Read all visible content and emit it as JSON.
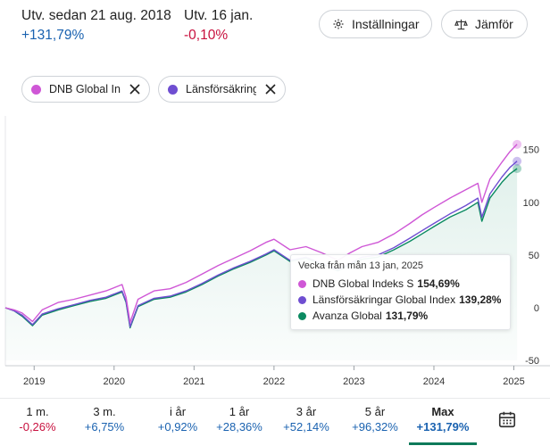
{
  "header": {
    "since_label": "Utv. sedan 21 aug. 2018",
    "since_value": "+131,79%",
    "day_label": "Utv. 16 jan.",
    "day_value": "-0,10%",
    "settings_label": "Inställningar",
    "compare_label": "Jämför"
  },
  "chips": [
    {
      "label": "DNB Global Indeks S",
      "color": "#cf57d6"
    },
    {
      "label": "Länsförsäkringar Global Index",
      "color": "#6f4ed1"
    }
  ],
  "chart_data": {
    "type": "line",
    "x_labels": [
      "2019",
      "2020",
      "2021",
      "2022",
      "2023",
      "2024",
      "2025"
    ],
    "y_ticks": [
      "150",
      "100",
      "50",
      "0",
      "-50"
    ],
    "y_tick_values": [
      150,
      100,
      50,
      0,
      -50
    ],
    "ylim": [
      -55,
      165
    ],
    "xlim": [
      2018.64,
      2025.05
    ],
    "series": [
      {
        "name": "DNB Global Indeks S",
        "color": "#cf57d6",
        "x": [
          2018.64,
          2018.75,
          2018.85,
          2018.98,
          2019.1,
          2019.3,
          2019.5,
          2019.7,
          2019.9,
          2020.1,
          2020.15,
          2020.2,
          2020.3,
          2020.5,
          2020.7,
          2020.9,
          2021.1,
          2021.3,
          2021.5,
          2021.7,
          2021.9,
          2022.0,
          2022.2,
          2022.4,
          2022.6,
          2022.8,
          2022.95,
          2023.1,
          2023.3,
          2023.5,
          2023.7,
          2023.85,
          2024.0,
          2024.2,
          2024.4,
          2024.55,
          2024.6,
          2024.7,
          2024.85,
          2024.95,
          2025.04
        ],
        "y": [
          0,
          -2,
          -5,
          -13,
          -2,
          5,
          8,
          12,
          16,
          22,
          10,
          -14,
          8,
          16,
          18,
          24,
          32,
          40,
          47,
          54,
          62,
          65,
          55,
          58,
          52,
          45,
          52,
          58,
          62,
          70,
          80,
          88,
          95,
          104,
          112,
          118,
          100,
          122,
          138,
          148,
          155
        ]
      },
      {
        "name": "Länsförsäkringar Global Index",
        "color": "#6f4ed1",
        "x": [
          2018.64,
          2018.75,
          2018.85,
          2018.98,
          2019.1,
          2019.3,
          2019.5,
          2019.7,
          2019.9,
          2020.1,
          2020.15,
          2020.2,
          2020.3,
          2020.5,
          2020.7,
          2020.9,
          2021.1,
          2021.3,
          2021.5,
          2021.7,
          2021.9,
          2022.0,
          2022.2,
          2022.4,
          2022.6,
          2022.8,
          2022.95,
          2023.1,
          2023.3,
          2023.5,
          2023.7,
          2023.85,
          2024.0,
          2024.2,
          2024.4,
          2024.55,
          2024.6,
          2024.7,
          2024.85,
          2024.95,
          2025.04
        ],
        "y": [
          0,
          -3,
          -7,
          -16,
          -6,
          -1,
          3,
          7,
          10,
          16,
          6,
          -18,
          2,
          9,
          11,
          16,
          23,
          31,
          38,
          44,
          51,
          55,
          45,
          48,
          42,
          36,
          42,
          48,
          50,
          57,
          66,
          73,
          80,
          89,
          97,
          104,
          86,
          108,
          124,
          133,
          139
        ]
      },
      {
        "name": "Avanza Global",
        "color": "#0b8a61",
        "x": [
          2018.64,
          2018.75,
          2018.85,
          2018.98,
          2019.1,
          2019.3,
          2019.5,
          2019.7,
          2019.9,
          2020.1,
          2020.15,
          2020.2,
          2020.3,
          2020.5,
          2020.7,
          2020.9,
          2021.1,
          2021.3,
          2021.5,
          2021.7,
          2021.9,
          2022.0,
          2022.2,
          2022.4,
          2022.6,
          2022.8,
          2022.95,
          2023.1,
          2023.3,
          2023.5,
          2023.7,
          2023.85,
          2024.0,
          2024.2,
          2024.4,
          2024.55,
          2024.6,
          2024.7,
          2024.85,
          2024.95,
          2025.04
        ],
        "y": [
          0,
          -3,
          -8,
          -17,
          -7,
          -2,
          2,
          6,
          9,
          15,
          5,
          -19,
          1,
          8,
          10,
          15,
          22,
          30,
          37,
          43,
          50,
          54,
          44,
          47,
          41,
          35,
          41,
          46,
          48,
          55,
          63,
          70,
          77,
          86,
          93,
          100,
          82,
          104,
          119,
          127,
          132
        ]
      }
    ]
  },
  "tooltip": {
    "title": "Vecka från mån 13 jan, 2025",
    "rows": [
      {
        "name": "DNB Global Indeks S",
        "value": "154,69%",
        "color": "#cf57d6"
      },
      {
        "name": "Länsförsäkringar Global Index",
        "value": "139,28%",
        "color": "#6f4ed1"
      },
      {
        "name": "Avanza Global",
        "value": "131,79%",
        "color": "#0b8a61"
      }
    ]
  },
  "periods": [
    {
      "label": "1 m.",
      "value": "-0,26%"
    },
    {
      "label": "3 m.",
      "value": "+6,75%"
    },
    {
      "label": "i år",
      "value": "+0,92%"
    },
    {
      "label": "1 år",
      "value": "+28,36%"
    },
    {
      "label": "3 år",
      "value": "+52,14%"
    },
    {
      "label": "5 år",
      "value": "+96,32%"
    },
    {
      "label": "Max",
      "value": "+131,79%"
    }
  ]
}
